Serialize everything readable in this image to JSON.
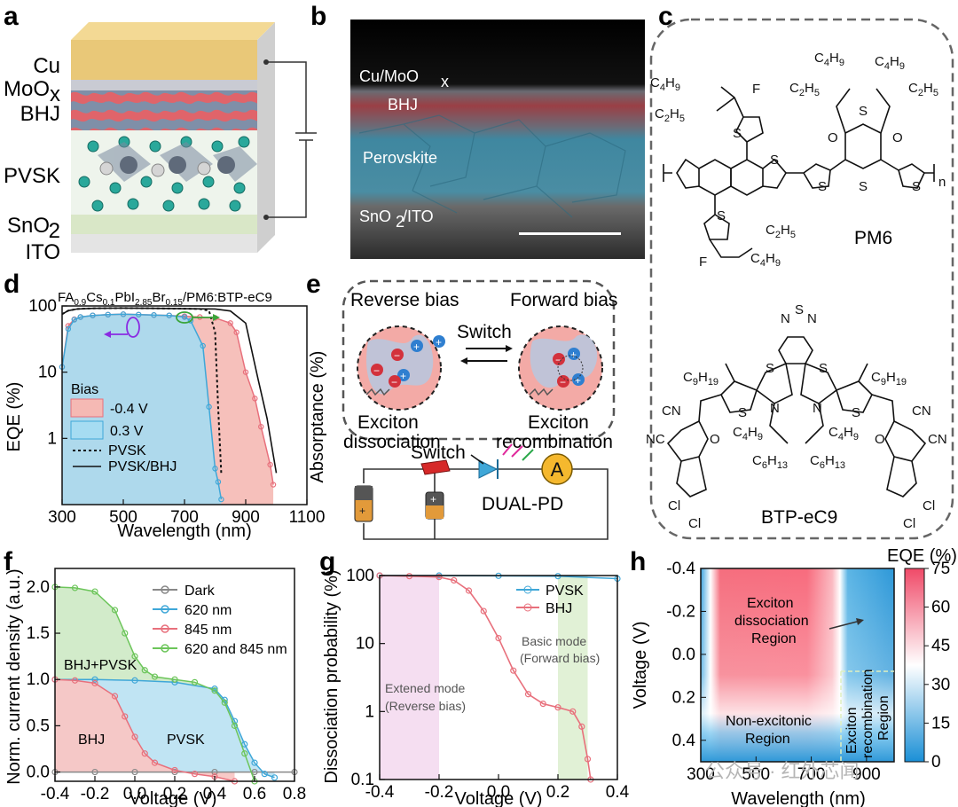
{
  "labels": {
    "a": "a",
    "b": "b",
    "c": "c",
    "d": "d",
    "e": "e",
    "f": "f",
    "g": "g",
    "h": "h"
  },
  "panel_a": {
    "layers": [
      "Cu",
      "MoO",
      "x",
      "BHJ",
      "PVSK",
      "SnO",
      "2",
      "ITO"
    ],
    "colors": {
      "cu": "#e9c878",
      "moo": "#c9cbd3",
      "bhj": "#e0646a",
      "pvsk": "#eef4ec",
      "sno": "#d9e7c7",
      "ito": "#e8e8e8"
    }
  },
  "panel_b": {
    "labels": [
      "Cu/MoO",
      "x",
      "BHJ",
      "Perovskite",
      "SnO",
      "2",
      "/ITO"
    ]
  },
  "panel_c": {
    "pm6": "PM6",
    "btp": "BTP-eC9",
    "substituents": [
      "C4H9",
      "C2H5",
      "C2H5",
      "C4H9",
      "C4H9",
      "C2H5",
      "C2H5",
      "C4H9",
      "F",
      "F",
      "S",
      "S",
      "S",
      "S",
      "S",
      "S",
      "O",
      "O",
      "n",
      "N",
      "S",
      "N",
      "S",
      "S",
      "S",
      "S",
      "N",
      "N",
      "C9H19",
      "C9H19",
      "C4H9",
      "C6H13",
      "C6H13",
      "C4H9",
      "CN",
      "NC",
      "CN",
      "CN",
      "O",
      "O",
      "Cl",
      "Cl",
      "Cl",
      "Cl"
    ]
  },
  "panel_d": {
    "title": "FA0.9Cs0.1PbI2.85Br0.15/PM6:BTP-eC9",
    "title_parts": [
      "FA",
      "0.9",
      "Cs",
      "0.1",
      "PbI",
      "2.85",
      "Br",
      "0.15",
      "/PM6:BTP-eC9"
    ],
    "ylabel": "EQE (%)",
    "ylabel_right": "Absorptance (%)",
    "xlabel": "Wavelength (nm)",
    "legend_title": "Bias",
    "legend": [
      "-0.4 V",
      "0.3 V",
      "PVSK",
      "PVSK/BHJ"
    ],
    "colors": {
      "red": "#f5b9b4",
      "blue": "#a6dcf2",
      "red_line": "#e8707c",
      "blue_line": "#3fa7d8"
    }
  },
  "panel_e": {
    "reverse": "Reverse bias",
    "forward": "Forward bias",
    "switch_top": "Switch",
    "dissociation": [
      "Exciton",
      "dissociation"
    ],
    "recombination": [
      "Exciton",
      "recombination"
    ],
    "switch_circuit": "Switch",
    "device": "DUAL-PD",
    "ammeter": "A"
  },
  "panel_f": {
    "ylabel": "Norm. current density (a.u.)",
    "xlabel": "Voltage (V)",
    "legend": [
      "Dark",
      "620 nm",
      "845 nm",
      "620 and 845 nm"
    ],
    "regions": [
      "BHJ+PVSK",
      "BHJ",
      "PVSK"
    ],
    "colors": {
      "dark": "#888888",
      "nm620": "#3fa7d8",
      "nm845": "#e8707c",
      "both": "#6cc55a"
    }
  },
  "panel_g": {
    "ylabel": "Dissociation probability (%)",
    "xlabel": "Voltage (V)",
    "legend": [
      "PVSK",
      "BHJ"
    ],
    "mode1": [
      "Basic mode",
      "(Forward bias)"
    ],
    "mode2": [
      "Extened mode",
      "(Reverse bias)"
    ]
  },
  "panel_h": {
    "ylabel": "Voltage (V)",
    "xlabel": "Wavelength (nm)",
    "cbar_title": "EQE (%)",
    "regions": [
      [
        "Exciton",
        "dissociation",
        "Region"
      ],
      [
        "Non-excitonic",
        "Region"
      ],
      [
        "Exciton",
        "recombination",
        "Region"
      ]
    ]
  },
  "watermark": "公众号 · 红外芯闻",
  "chart_data": [
    {
      "type": "line",
      "panel": "d",
      "title": "FA0.9Cs0.1PbI2.85Br0.15/PM6:BTP-eC9",
      "xlabel": "Wavelength (nm)",
      "ylabel": "EQE (%)",
      "ylabel_right": "Absorptance (%)",
      "xlim": [
        300,
        1100
      ],
      "ylim": [
        0.1,
        100
      ],
      "yscale": "log",
      "xticks": [
        300,
        500,
        700,
        900,
        1100
      ],
      "yticks": [
        1,
        10,
        100
      ],
      "series": [
        {
          "name": "-0.4 V",
          "x": [
            300,
            320,
            340,
            360,
            400,
            450,
            500,
            550,
            600,
            650,
            700,
            750,
            800,
            850,
            870,
            900,
            930,
            950,
            980,
            990
          ],
          "y": [
            12,
            50,
            63,
            68,
            72,
            74,
            75,
            74,
            73,
            72,
            70,
            68,
            66,
            55,
            40,
            10,
            4,
            1.5,
            0.4,
            0.2
          ]
        },
        {
          "name": "0.3 V",
          "x": [
            300,
            320,
            340,
            360,
            400,
            450,
            500,
            550,
            600,
            650,
            700,
            720,
            760,
            780,
            800,
            810,
            820
          ],
          "y": [
            12,
            45,
            62,
            68,
            72,
            74,
            75,
            74,
            73,
            72,
            68,
            60,
            25,
            3,
            0.35,
            0.22,
            0.12
          ]
        },
        {
          "name": "PVSK",
          "x": [
            300,
            320,
            350,
            400,
            500,
            600,
            700,
            750,
            780,
            800,
            810,
            820
          ],
          "y": [
            75,
            85,
            90,
            92,
            93,
            92,
            91,
            90,
            85,
            40,
            3,
            0.3
          ]
        },
        {
          "name": "PVSK/BHJ",
          "x": [
            300,
            320,
            350,
            400,
            500,
            600,
            700,
            800,
            850,
            900,
            940,
            970,
            1000
          ],
          "y": [
            75,
            85,
            90,
            92,
            93,
            92,
            91,
            90,
            84,
            55,
            8,
            2,
            0.3
          ]
        }
      ]
    },
    {
      "type": "line",
      "panel": "f",
      "xlabel": "Voltage (V)",
      "ylabel": "Norm. current density (a.u.)",
      "xlim": [
        -0.4,
        0.8
      ],
      "ylim": [
        -0.1,
        2.2
      ],
      "xticks": [
        -0.4,
        -0.2,
        0.0,
        0.2,
        0.4,
        0.6,
        0.8
      ],
      "yticks": [
        0.0,
        0.5,
        1.0,
        1.5,
        2.0
      ],
      "series": [
        {
          "name": "Dark",
          "x": [
            -0.4,
            -0.2,
            0.0,
            0.2,
            0.4,
            0.6,
            0.8
          ],
          "y": [
            0,
            0,
            0,
            0,
            0,
            0,
            0
          ]
        },
        {
          "name": "620 nm",
          "x": [
            -0.4,
            -0.2,
            0.0,
            0.2,
            0.4,
            0.45,
            0.5,
            0.55,
            0.6,
            0.65,
            0.7
          ],
          "y": [
            1.0,
            1.0,
            0.99,
            0.97,
            0.9,
            0.78,
            0.55,
            0.3,
            0.1,
            -0.02,
            -0.06
          ]
        },
        {
          "name": "845 nm",
          "x": [
            -0.4,
            -0.3,
            -0.2,
            -0.1,
            -0.05,
            0.0,
            0.05,
            0.1,
            0.2,
            0.3,
            0.4,
            0.5
          ],
          "y": [
            1.0,
            0.99,
            0.96,
            0.82,
            0.6,
            0.38,
            0.2,
            0.1,
            0.02,
            -0.02,
            -0.05,
            -0.1
          ]
        },
        {
          "name": "620 and 845 nm",
          "x": [
            -0.4,
            -0.3,
            -0.2,
            -0.1,
            -0.05,
            0.0,
            0.05,
            0.1,
            0.2,
            0.3,
            0.4,
            0.45,
            0.5,
            0.55,
            0.6
          ],
          "y": [
            2.0,
            1.99,
            1.95,
            1.75,
            1.5,
            1.25,
            1.1,
            1.03,
            1.0,
            0.97,
            0.88,
            0.75,
            0.5,
            0.2,
            -0.1
          ]
        }
      ]
    },
    {
      "type": "line",
      "panel": "g",
      "xlabel": "Voltage (V)",
      "ylabel": "Dissociation probability (%)",
      "xlim": [
        -0.4,
        0.4
      ],
      "ylim": [
        0.1,
        100
      ],
      "yscale": "log",
      "xticks": [
        -0.4,
        -0.2,
        0.0,
        0.2,
        0.4
      ],
      "yticks": [
        0.1,
        1,
        10,
        100
      ],
      "series": [
        {
          "name": "PVSK",
          "x": [
            -0.4,
            -0.2,
            0.0,
            0.2,
            0.4
          ],
          "y": [
            100,
            100,
            99,
            98,
            90
          ]
        },
        {
          "name": "BHJ",
          "x": [
            -0.4,
            -0.3,
            -0.2,
            -0.15,
            -0.1,
            -0.05,
            0.0,
            0.05,
            0.1,
            0.15,
            0.2,
            0.25,
            0.28,
            0.3,
            0.31
          ],
          "y": [
            100,
            98,
            95,
            85,
            60,
            30,
            12,
            4,
            1.8,
            1.3,
            1.15,
            1.0,
            0.6,
            0.2,
            0.1
          ]
        }
      ]
    },
    {
      "type": "heatmap",
      "panel": "h",
      "xlabel": "Wavelength (nm)",
      "ylabel": "Voltage (V)",
      "xlim": [
        300,
        1000
      ],
      "ylim": [
        0.5,
        -0.4
      ],
      "xticks": [
        300,
        500,
        700,
        900
      ],
      "yticks": [
        -0.4,
        -0.2,
        0.0,
        0.2,
        0.4
      ],
      "colorbar": {
        "title": "EQE (%)",
        "min": 0,
        "max": 75,
        "ticks": [
          0,
          15,
          30,
          45,
          60,
          75
        ]
      }
    }
  ]
}
